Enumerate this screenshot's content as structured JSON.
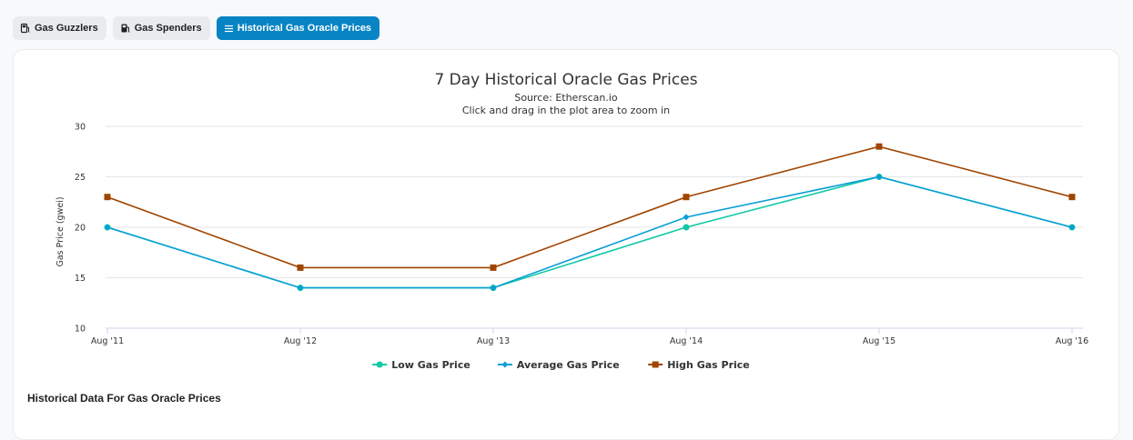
{
  "tabs": [
    {
      "label": "Gas Guzzlers",
      "icon": "gas-pump-icon",
      "active": false
    },
    {
      "label": "Gas Spenders",
      "icon": "gas-pump-spender-icon",
      "active": false
    },
    {
      "label": "Historical Gas Oracle Prices",
      "icon": "list-icon",
      "active": true
    }
  ],
  "chart_data": {
    "type": "line",
    "title": "7 Day Historical Oracle Gas Prices",
    "subtitle": [
      "Source: Etherscan.io",
      "Click and drag in the plot area to zoom in"
    ],
    "xlabel": "",
    "ylabel": "Gas Price (gwei)",
    "categories": [
      "Aug '11",
      "Aug '12",
      "Aug '13",
      "Aug '14",
      "Aug '15",
      "Aug '16"
    ],
    "ylim": [
      10,
      30
    ],
    "yticks": [
      10,
      15,
      20,
      25,
      30
    ],
    "grid": true,
    "legend_position": "bottom-center",
    "series": [
      {
        "name": "Low Gas Price",
        "values": [
          20,
          14,
          14,
          20,
          25,
          20
        ],
        "color": "#10c9a6",
        "marker": "circle"
      },
      {
        "name": "Average Gas Price",
        "values": [
          20,
          14,
          14,
          21,
          25,
          20
        ],
        "color": "#0a9fd6",
        "marker": "diamond"
      },
      {
        "name": "High Gas Price",
        "values": [
          23,
          16,
          16,
          23,
          28,
          23
        ],
        "color": "#a04400",
        "marker": "square"
      }
    ]
  },
  "section": {
    "title": "Historical Data For Gas Oracle Prices"
  }
}
